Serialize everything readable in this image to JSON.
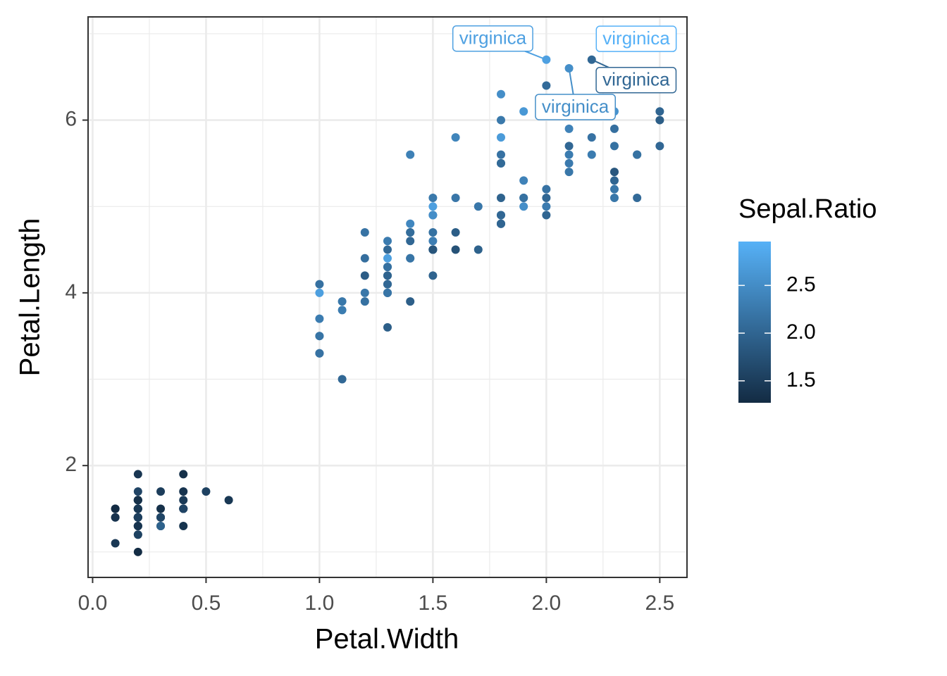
{
  "chart_data": {
    "type": "scatter",
    "x_label": "Petal.Width",
    "y_label": "Petal.Length",
    "color_label": "Sepal.Ratio",
    "xlim": [
      -0.02,
      2.62
    ],
    "ylim": [
      0.705,
      7.195
    ],
    "xticks": [
      {
        "value": 0,
        "label": "0.0"
      },
      0.5,
      {
        "value": 1,
        "label": "1.0"
      },
      1.5,
      {
        "value": 2,
        "label": "2.0"
      },
      2.5
    ],
    "yticks": [
      2,
      4,
      6
    ],
    "x_minor_ticks": [
      0.25,
      0.75,
      1.25,
      1.75,
      2.25
    ],
    "y_minor_ticks": [
      1,
      3,
      5,
      7
    ],
    "grid": true,
    "color_low": "#132B43",
    "color_high": "#56B1F7",
    "colorlim": [
      1.27,
      2.96
    ],
    "colorticks": [
      1.5,
      {
        "value": 2,
        "label": "2.0"
      },
      2.5
    ],
    "x": [
      0.2,
      0.2,
      0.2,
      0.2,
      0.2,
      0.4,
      0.3,
      0.2,
      0.2,
      0.1,
      0.2,
      0.2,
      0.1,
      0.1,
      0.2,
      0.4,
      0.4,
      0.3,
      0.3,
      0.3,
      0.2,
      0.4,
      0.2,
      0.5,
      0.2,
      0.2,
      0.4,
      0.2,
      0.2,
      0.2,
      0.2,
      0.4,
      0.1,
      0.2,
      0.2,
      0.2,
      0.2,
      0.1,
      0.2,
      0.2,
      0.3,
      0.3,
      0.2,
      0.6,
      0.4,
      0.3,
      0.2,
      0.2,
      0.2,
      0.2,
      1.4,
      1.5,
      1.5,
      1.3,
      1.5,
      1.3,
      1.6,
      1.0,
      1.3,
      1.4,
      1.0,
      1.5,
      1.0,
      1.4,
      1.3,
      1.4,
      1.5,
      1.0,
      1.5,
      1.1,
      1.8,
      1.3,
      1.5,
      1.2,
      1.3,
      1.4,
      1.4,
      1.7,
      1.5,
      1.0,
      1.1,
      1.0,
      1.2,
      1.6,
      1.5,
      1.6,
      1.5,
      1.3,
      1.3,
      1.3,
      1.2,
      1.4,
      1.2,
      1.0,
      1.3,
      1.2,
      1.3,
      1.3,
      1.1,
      1.3,
      2.5,
      1.9,
      2.1,
      1.8,
      2.2,
      2.1,
      1.7,
      1.8,
      1.8,
      2.5,
      2.0,
      1.9,
      2.1,
      2.0,
      2.4,
      2.3,
      1.8,
      2.2,
      2.3,
      1.5,
      2.3,
      2.0,
      2.0,
      1.8,
      2.1,
      1.8,
      1.8,
      1.8,
      2.1,
      1.6,
      1.9,
      2.0,
      2.2,
      1.5,
      1.4,
      2.3,
      2.4,
      1.8,
      1.8,
      2.1,
      2.4,
      2.3,
      1.9,
      2.3,
      2.5,
      2.3,
      1.9,
      2.0,
      2.3,
      1.8
    ],
    "y": [
      1.4,
      1.4,
      1.3,
      1.5,
      1.4,
      1.7,
      1.4,
      1.5,
      1.4,
      1.5,
      1.5,
      1.6,
      1.4,
      1.1,
      1.2,
      1.5,
      1.3,
      1.4,
      1.7,
      1.5,
      1.7,
      1.5,
      1.0,
      1.7,
      1.9,
      1.6,
      1.6,
      1.5,
      1.4,
      1.6,
      1.6,
      1.5,
      1.5,
      1.4,
      1.5,
      1.2,
      1.3,
      1.4,
      1.3,
      1.5,
      1.3,
      1.3,
      1.3,
      1.6,
      1.9,
      1.4,
      1.6,
      1.4,
      1.5,
      1.4,
      4.7,
      4.5,
      4.9,
      4.0,
      4.6,
      4.5,
      4.7,
      3.3,
      4.6,
      3.9,
      3.5,
      4.2,
      4.0,
      4.7,
      3.6,
      4.4,
      4.5,
      4.1,
      4.5,
      3.9,
      4.8,
      4.0,
      4.9,
      4.7,
      4.3,
      4.4,
      4.8,
      5.0,
      4.5,
      3.5,
      3.8,
      3.7,
      3.9,
      5.1,
      4.5,
      4.5,
      4.7,
      4.4,
      4.1,
      4.0,
      4.4,
      4.6,
      4.0,
      3.3,
      4.2,
      4.2,
      4.2,
      4.3,
      3.0,
      4.1,
      6.0,
      5.1,
      5.9,
      5.6,
      5.8,
      6.6,
      4.5,
      6.3,
      5.8,
      6.1,
      5.1,
      5.3,
      5.5,
      5.0,
      5.1,
      5.3,
      5.5,
      6.7,
      6.9,
      5.0,
      5.7,
      4.9,
      6.7,
      4.9,
      5.7,
      6.0,
      4.8,
      4.9,
      5.6,
      5.8,
      6.1,
      6.4,
      5.6,
      5.1,
      5.6,
      6.1,
      5.6,
      5.5,
      4.8,
      5.4,
      5.6,
      5.1,
      5.1,
      5.9,
      5.7,
      5.2,
      5.0,
      5.2,
      5.4,
      5.1
    ],
    "color_values": [
      1.46,
      1.63,
      1.47,
      1.48,
      1.39,
      1.38,
      1.35,
      1.47,
      1.52,
      1.58,
      1.46,
      1.41,
      1.6,
      1.43,
      1.45,
      1.3,
      1.38,
      1.46,
      1.5,
      1.34,
      1.59,
      1.38,
      1.28,
      1.55,
      1.41,
      1.67,
      1.47,
      1.49,
      1.53,
      1.47,
      1.55,
      1.59,
      1.27,
      1.31,
      1.58,
      1.56,
      1.57,
      1.36,
      1.47,
      1.5,
      1.43,
      1.96,
      1.38,
      1.43,
      1.34,
      1.6,
      1.34,
      1.44,
      1.43,
      1.52,
      2.19,
      2.0,
      2.23,
      2.39,
      2.32,
      2.04,
      1.91,
      2.04,
      2.28,
      1.93,
      2.5,
      1.97,
      2.73,
      2.1,
      1.93,
      2.16,
      1.87,
      2.15,
      2.82,
      2.24,
      1.84,
      2.18,
      2.52,
      2.18,
      2.21,
      2.2,
      2.43,
      2.23,
      2.07,
      2.19,
      2.29,
      2.29,
      2.15,
      2.22,
      1.8,
      1.76,
      2.16,
      2.74,
      1.87,
      2.2,
      2.12,
      2.03,
      2.23,
      2.17,
      2.07,
      1.9,
      1.97,
      2.14,
      2.04,
      2.04,
      1.91,
      2.15,
      2.37,
      2.17,
      2.17,
      2.53,
      1.96,
      2.52,
      2.68,
      2.0,
      2.03,
      2.37,
      2.27,
      2.28,
      2.07,
      2.0,
      2.17,
      2.03,
      2.96,
      2.73,
      2.16,
      2.0,
      2.75,
      2.33,
      2.03,
      2.25,
      2.21,
      2.03,
      2.29,
      2.4,
      2.64,
      2.08,
      2.29,
      2.25,
      2.35,
      2.57,
      1.85,
      2.06,
      2.0,
      2.23,
      2.16,
      2.23,
      2.15,
      2.13,
      2.03,
      2.23,
      2.52,
      2.17,
      1.82,
      1.97
    ],
    "point_labels": [
      null,
      null,
      null,
      null,
      null,
      null,
      null,
      null,
      null,
      null,
      null,
      null,
      null,
      null,
      null,
      null,
      null,
      null,
      null,
      null,
      null,
      null,
      null,
      null,
      null,
      null,
      null,
      null,
      null,
      null,
      null,
      null,
      null,
      null,
      null,
      null,
      null,
      null,
      null,
      null,
      null,
      null,
      null,
      null,
      null,
      null,
      null,
      null,
      null,
      null,
      null,
      null,
      null,
      null,
      null,
      null,
      null,
      null,
      null,
      null,
      null,
      null,
      null,
      null,
      null,
      null,
      null,
      null,
      null,
      null,
      null,
      null,
      null,
      null,
      null,
      null,
      null,
      null,
      null,
      null,
      null,
      null,
      null,
      null,
      null,
      null,
      null,
      null,
      null,
      null,
      null,
      null,
      null,
      null,
      null,
      null,
      null,
      null,
      null,
      null,
      null,
      null,
      null,
      null,
      null,
      "virginica",
      null,
      null,
      null,
      null,
      null,
      null,
      null,
      null,
      null,
      null,
      null,
      "virginica",
      "virginica",
      null,
      null,
      null,
      "virginica",
      null,
      null,
      null,
      null,
      null,
      null,
      null,
      null,
      null,
      null,
      null,
      null,
      null,
      null,
      null,
      null,
      null,
      null,
      null,
      null,
      null,
      null,
      null,
      null,
      null,
      null,
      null
    ]
  }
}
